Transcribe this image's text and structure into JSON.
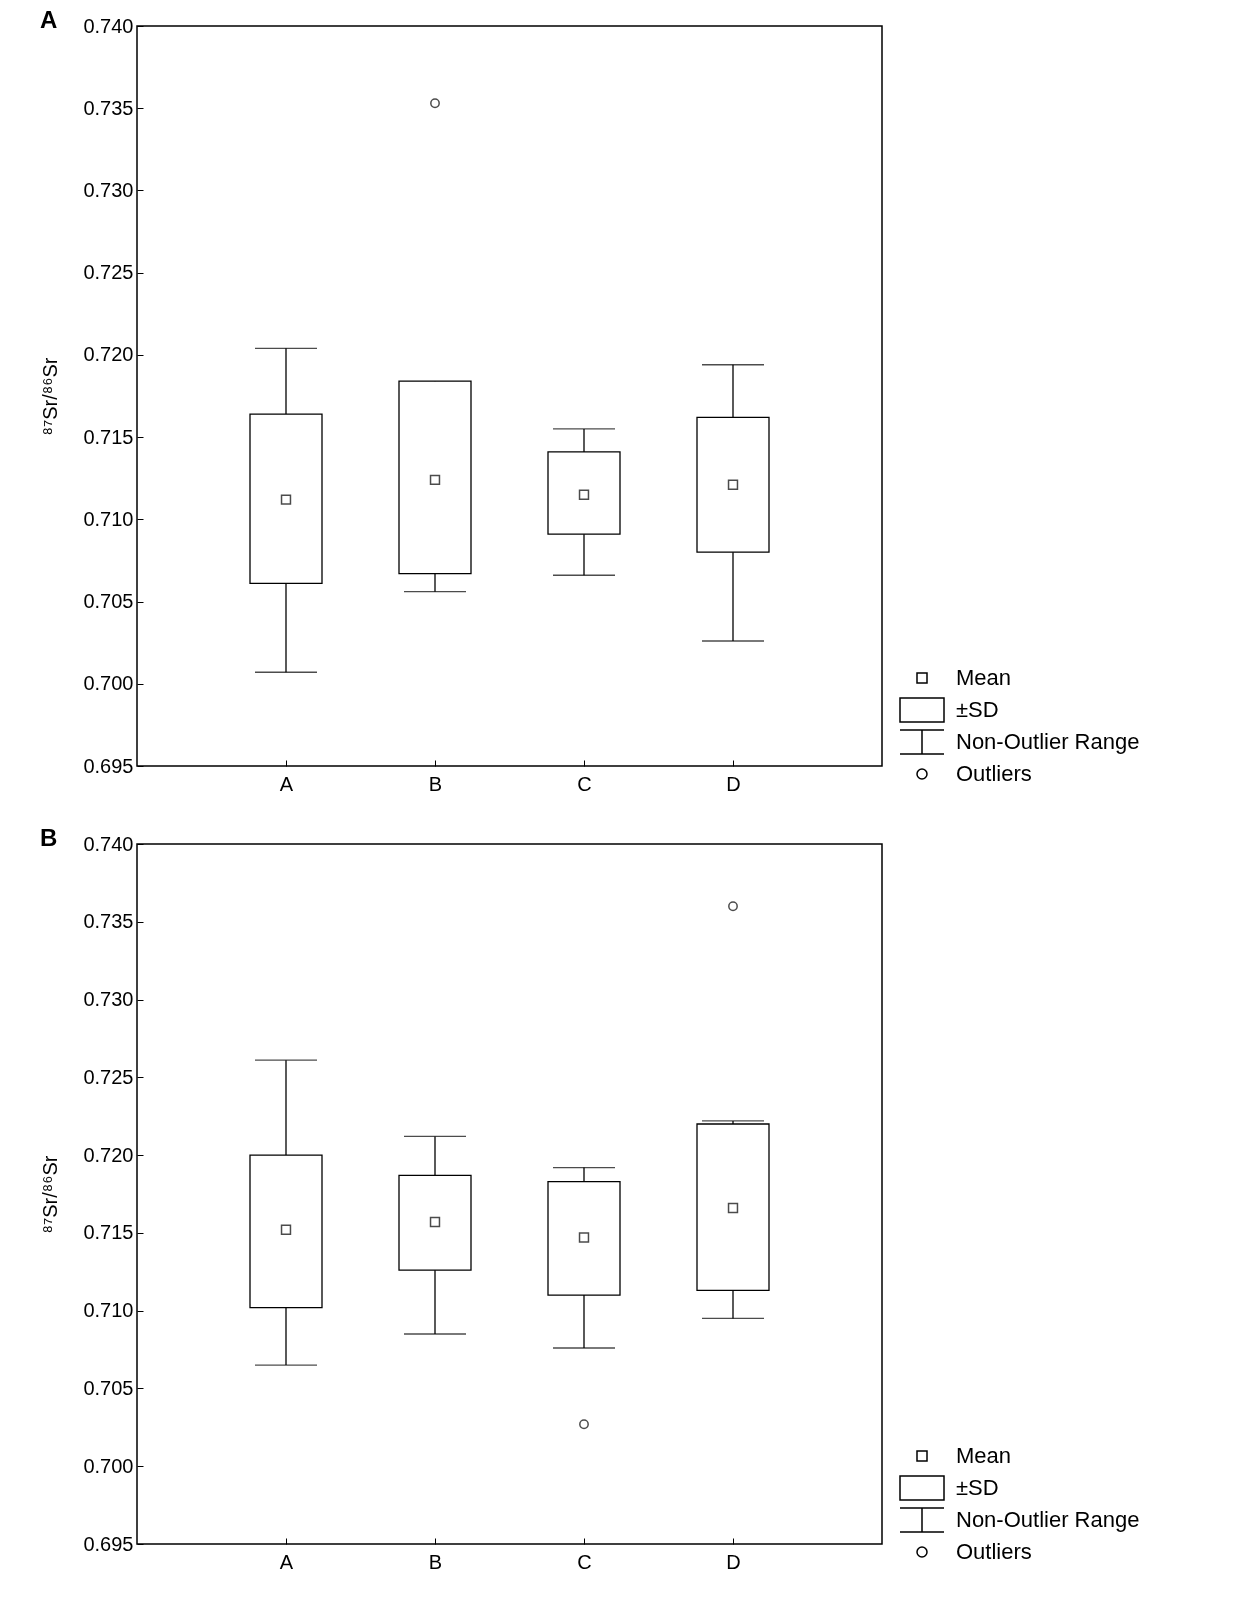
{
  "chart_data": [
    {
      "type": "box",
      "title": "A",
      "ylabel": "⁸⁷Sr/⁸⁶Sr",
      "categories": [
        "A",
        "B",
        "C",
        "D"
      ],
      "annotations": [
        "Mean",
        "±SD",
        "Non-Outlier Range",
        "Outliers"
      ],
      "boxes": [
        {
          "low": 0.7007,
          "q1": 0.7061,
          "q3": 0.7164,
          "high": 0.7204,
          "mean": 0.7112
        },
        {
          "low": 0.7056,
          "q1": 0.7067,
          "q3": 0.7184,
          "high": 0.7184,
          "mean": 0.7124,
          "outliers": [
            0.7353
          ]
        },
        {
          "low": 0.7066,
          "q1": 0.7091,
          "q3": 0.7141,
          "high": 0.7155,
          "mean": 0.7115
        },
        {
          "low": 0.7026,
          "q1": 0.708,
          "q3": 0.7162,
          "high": 0.7194,
          "mean": 0.7121
        }
      ],
      "ylim": [
        0.695,
        0.74
      ],
      "yticks": [
        0.695,
        {
          "value": 0.7,
          "label": "0.700"
        },
        0.705,
        {
          "value": 0.71,
          "label": "0.710"
        },
        0.715,
        {
          "value": 0.72,
          "label": "0.720"
        },
        0.725,
        {
          "value": 0.73,
          "label": "0.730"
        },
        0.735,
        {
          "value": 0.74,
          "label": "0.740"
        }
      ]
    },
    {
      "type": "box",
      "title": "B",
      "ylabel": "⁸⁷Sr/⁸⁶Sr",
      "categories": [
        "A",
        "B",
        "C",
        "D"
      ],
      "annotations": [
        "Mean",
        "±SD",
        "Non-Outlier Range",
        "Outliers"
      ],
      "boxes": [
        {
          "low": 0.7065,
          "q1": 0.7102,
          "q3": 0.72,
          "high": 0.7261,
          "mean": 0.7152
        },
        {
          "low": 0.7085,
          "q1": 0.7126,
          "q3": 0.7187,
          "high": 0.7212,
          "mean": 0.7157
        },
        {
          "low": 0.7076,
          "q1": 0.711,
          "q3": 0.7183,
          "high": 0.7192,
          "mean": 0.7147,
          "outliers": [
            0.7027
          ]
        },
        {
          "low": 0.7095,
          "q1": 0.7113,
          "q3": 0.722,
          "high": 0.7222,
          "mean": 0.7166,
          "outliers": [
            0.736
          ]
        }
      ],
      "ylim": [
        0.695,
        0.74
      ],
      "yticks": [
        0.695,
        {
          "value": 0.7,
          "label": "0.700"
        },
        0.705,
        {
          "value": 0.71,
          "label": "0.710"
        },
        0.715,
        {
          "value": 0.72,
          "label": "0.720"
        },
        0.725,
        {
          "value": 0.73,
          "label": "0.730"
        },
        0.735,
        {
          "value": 0.74,
          "label": "0.740"
        }
      ]
    }
  ]
}
